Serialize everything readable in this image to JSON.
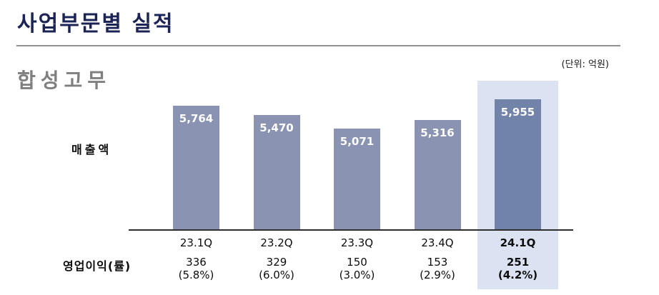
{
  "page": {
    "title": "사업부문별 실적",
    "unit_label": "(단위: 억원)"
  },
  "chart_data": {
    "type": "bar",
    "title": "합성고무",
    "unit": "(단위: 억원)",
    "categories": [
      "23.1Q",
      "23.2Q",
      "23.3Q",
      "23.4Q",
      "24.1Q"
    ],
    "series": [
      {
        "name": "매출액",
        "values": [
          5764,
          5470,
          5071,
          5316,
          5955
        ],
        "labels": [
          "5,764",
          "5,470",
          "5,071",
          "5,316",
          "5,955"
        ]
      },
      {
        "name": "영업이익(률)",
        "values": [
          336,
          329,
          150,
          153,
          251
        ],
        "labels": [
          "336",
          "329",
          "150",
          "153",
          "251"
        ],
        "rate_labels": [
          "(5.8%)",
          "(6.0%)",
          "(3.0%)",
          "(2.9%)",
          "(4.2%)"
        ]
      }
    ],
    "row_labels": {
      "revenue": "매출액",
      "profit": "영업이익(률)"
    },
    "highlight_index": 4,
    "ylim": [
      2000,
      6100
    ],
    "legend": "none",
    "grid": false,
    "colors": {
      "bar": "#8A94B2",
      "bar_highlight": "#7283AA",
      "highlight_band": "#DBE3F3",
      "title": "#1C2456",
      "section_title": "#7F7F7F",
      "axis": "#2E2E2E",
      "bar_value_text": "#FFFFFF"
    }
  }
}
